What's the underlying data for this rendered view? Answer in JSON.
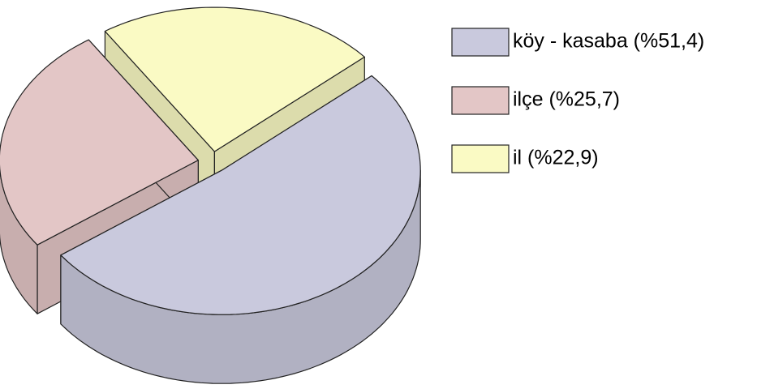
{
  "chart_data": {
    "type": "pie",
    "categories": [
      "köy - kasaba (%51,4)",
      "ilçe  (%25,7)",
      "il (%22,9)"
    ],
    "values": [
      51.4,
      25.7,
      22.9
    ],
    "colors": [
      "#c9c9dd",
      "#e3c6c6",
      "#fafac4"
    ]
  }
}
